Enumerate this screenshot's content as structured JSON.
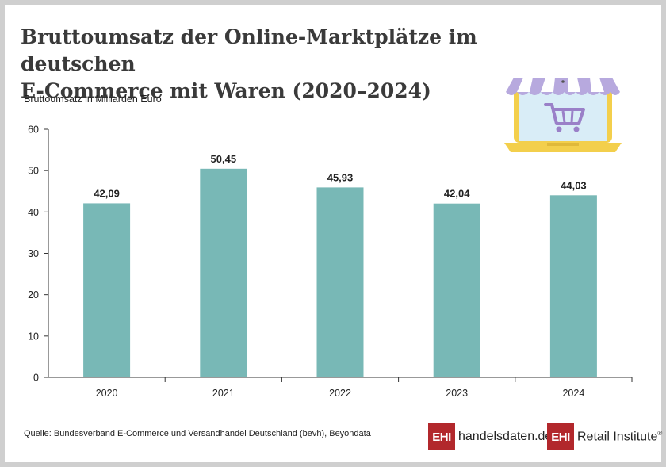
{
  "title": {
    "line1": "Bruttoumsatz der Online-Marktplätze im deutschen",
    "line2": "E-Commerce mit Waren (2020–2024)"
  },
  "source": "Quelle: Bundesverband E-Commerce und Versandhandel Deutschland (bevh), Beyondata",
  "logos": {
    "handelsdaten": {
      "box": "EHI",
      "text": "handelsdaten.de"
    },
    "retail": {
      "box": "EHI",
      "text": "Retail Institute",
      "mark": "®"
    }
  },
  "icons": {
    "illustration": "laptop-shop-cart-icon"
  },
  "chart_data": {
    "type": "bar",
    "ylabel": "Bruttoumsatz in Milliarden Euro",
    "xlabel": "",
    "categories": [
      "2020",
      "2021",
      "2022",
      "2023",
      "2024"
    ],
    "values": [
      42.09,
      50.45,
      45.93,
      42.04,
      44.03
    ],
    "value_labels": [
      "42,09",
      "50,45",
      "45,93",
      "42,04",
      "44,03"
    ],
    "ylim": [
      0,
      60
    ],
    "yticks": [
      0,
      10,
      20,
      30,
      40,
      50,
      60
    ],
    "grid": false,
    "legend": "none",
    "bar_color": "#78b8b6"
  }
}
